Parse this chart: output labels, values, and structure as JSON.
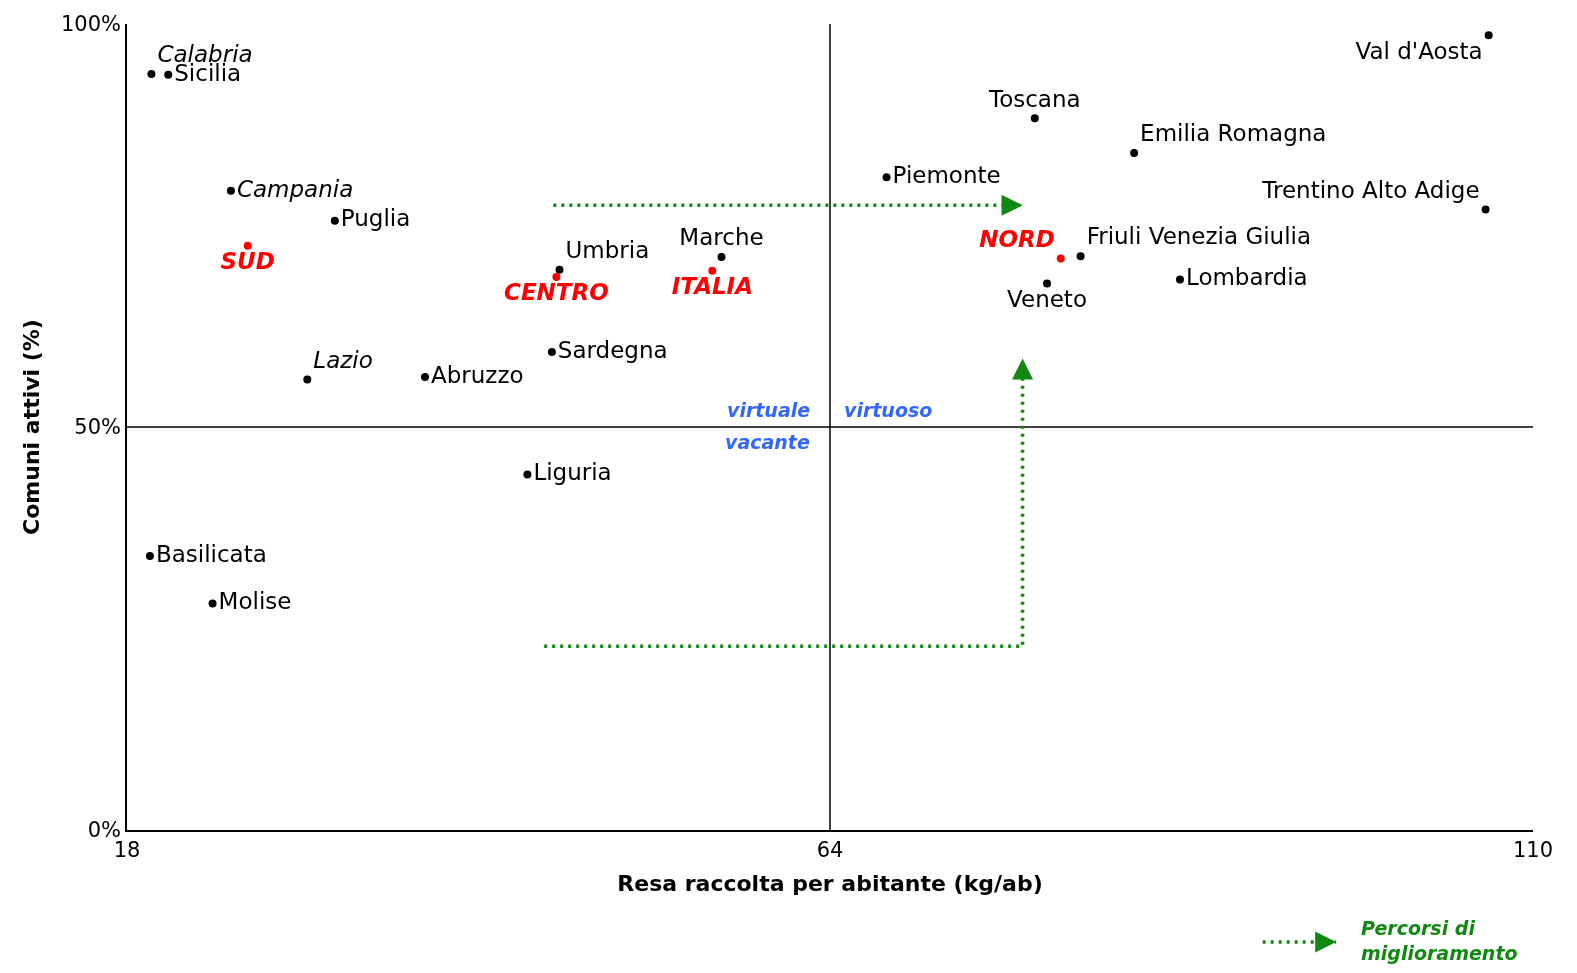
{
  "chart_data": {
    "type": "scatter",
    "xlabel": "Resa raccolta per abitante (kg/ab)",
    "ylabel": "Comuni attivi (%)",
    "xlim": [
      18,
      110
    ],
    "xticks": [
      18,
      64,
      110
    ],
    "ylim": [
      0,
      100
    ],
    "yticks": [
      {
        "value": 0,
        "label": "0%"
      },
      {
        "value": 50,
        "label": "50%"
      },
      {
        "value": 100,
        "label": "100%"
      }
    ],
    "legend": false,
    "marker": "circle",
    "ref_lines": [
      {
        "axis": "x",
        "value": 64,
        "color": "#000000"
      },
      {
        "axis": "y",
        "value": 50,
        "color": "#000000"
      }
    ],
    "annotations": [
      "virtuale",
      "virtuoso",
      "vacante",
      "Percorsi di miglioramento"
    ],
    "series": [
      {
        "name": "Calabria",
        "color": "#000000",
        "x": [
          19.6
        ],
        "values": [
          93.8
        ]
      },
      {
        "name": "Sicilia",
        "color": "#000000",
        "x": [
          20.7
        ],
        "values": [
          93.7
        ]
      },
      {
        "name": "Campania",
        "color": "#000000",
        "x": [
          24.8
        ],
        "values": [
          79.3
        ]
      },
      {
        "name": "Puglia",
        "color": "#000000",
        "x": [
          31.6
        ],
        "values": [
          75.6
        ]
      },
      {
        "name": "SUD",
        "color": "#ff0000",
        "x": [
          25.9
        ],
        "values": [
          72.5
        ]
      },
      {
        "name": "Umbria",
        "color": "#000000",
        "x": [
          46.3
        ],
        "values": [
          69.5
        ]
      },
      {
        "name": "CENTRO",
        "color": "#ff0000",
        "x": [
          46.1
        ],
        "values": [
          68.6
        ]
      },
      {
        "name": "Marche",
        "color": "#000000",
        "x": [
          56.9
        ],
        "values": [
          71.1
        ]
      },
      {
        "name": "ITALIA",
        "color": "#ff0000",
        "x": [
          56.3
        ],
        "values": [
          69.4
        ]
      },
      {
        "name": "Sardegna",
        "color": "#000000",
        "x": [
          45.8
        ],
        "values": [
          59.3
        ]
      },
      {
        "name": "Lazio",
        "color": "#000000",
        "x": [
          29.8
        ],
        "values": [
          55.9
        ]
      },
      {
        "name": "Abruzzo",
        "color": "#000000",
        "x": [
          37.5
        ],
        "values": [
          56.2
        ]
      },
      {
        "name": "Liguria",
        "color": "#000000",
        "x": [
          44.2
        ],
        "values": [
          44.1
        ]
      },
      {
        "name": "Basilicata",
        "color": "#000000",
        "x": [
          19.5
        ],
        "values": [
          34.0
        ]
      },
      {
        "name": "Molise",
        "color": "#000000",
        "x": [
          23.6
        ],
        "values": [
          28.1
        ]
      },
      {
        "name": "Piemonte",
        "color": "#000000",
        "x": [
          67.7
        ],
        "values": [
          81.0
        ]
      },
      {
        "name": "Toscana",
        "color": "#000000",
        "x": [
          77.4
        ],
        "values": [
          88.3
        ]
      },
      {
        "name": "Emilia Romagna",
        "color": "#000000",
        "x": [
          83.9
        ],
        "values": [
          84.0
        ]
      },
      {
        "name": "Val d'Aosta",
        "color": "#000000",
        "x": [
          107.1
        ],
        "values": [
          98.6
        ]
      },
      {
        "name": "Trentino Alto Adige",
        "color": "#000000",
        "x": [
          106.9
        ],
        "values": [
          77.0
        ]
      },
      {
        "name": "Friuli Venezia Giulia",
        "color": "#000000",
        "x": [
          80.4
        ],
        "values": [
          71.2
        ]
      },
      {
        "name": "NORD",
        "color": "#ff0000",
        "x": [
          79.1
        ],
        "values": [
          70.9
        ]
      },
      {
        "name": "Veneto",
        "color": "#000000",
        "x": [
          78.2
        ],
        "values": [
          67.8
        ]
      },
      {
        "name": "Lombardia",
        "color": "#000000",
        "x": [
          86.9
        ],
        "values": [
          68.3
        ]
      }
    ]
  }
}
